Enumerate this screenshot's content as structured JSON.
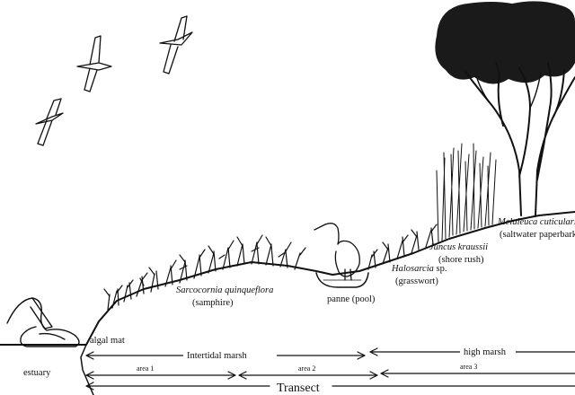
{
  "labels": {
    "sarcocornia_name": "Sarcocornia quinqueflora",
    "sarcocornia_common": "(samphire)",
    "panne": "panne (pool)",
    "halosarcia_name": "Halosarcia",
    "halosarcia_sp": " sp.",
    "halosarcia_common": "(grasswort)",
    "juncus_name": "Juncus kraussii",
    "juncus_common": "(shore rush)",
    "melaleuca_name": "Melaleuca cuticularis",
    "melaleuca_common": "(saltwater paperbark)",
    "algal_mat": "algal mat",
    "estuary": "estuary"
  },
  "zones": {
    "intertidal": "Intertidal marsh",
    "high": "high marsh"
  },
  "areas": [
    "area 1",
    "area 2",
    "area 3"
  ],
  "transect": "Transect"
}
